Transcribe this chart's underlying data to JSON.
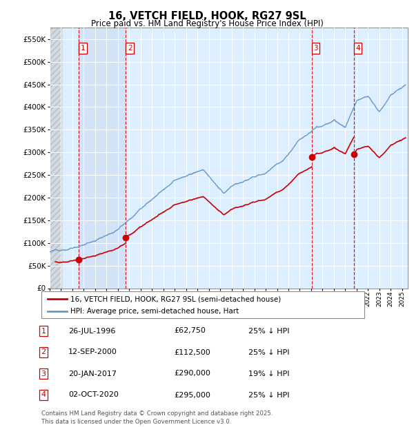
{
  "title": "16, VETCH FIELD, HOOK, RG27 9SL",
  "subtitle": "Price paid vs. HM Land Registry's House Price Index (HPI)",
  "ylabel_ticks": [
    "£0",
    "£50K",
    "£100K",
    "£150K",
    "£200K",
    "£250K",
    "£300K",
    "£350K",
    "£400K",
    "£450K",
    "£500K",
    "£550K"
  ],
  "ytick_values": [
    0,
    50000,
    100000,
    150000,
    200000,
    250000,
    300000,
    350000,
    400000,
    450000,
    500000,
    550000
  ],
  "ylim": [
    0,
    575000
  ],
  "xlim_start": 1994.0,
  "xlim_end": 2025.5,
  "background_color": "#ffffff",
  "plot_bg_color": "#ddeeff",
  "sale_points": [
    {
      "year": 1996.57,
      "price": 62750,
      "label": "1"
    },
    {
      "year": 2000.7,
      "price": 112500,
      "label": "2"
    },
    {
      "year": 2017.05,
      "price": 290000,
      "label": "3"
    },
    {
      "year": 2020.75,
      "price": 295000,
      "label": "4"
    }
  ],
  "vline_years": [
    1996.57,
    2000.7,
    2017.05,
    2020.75
  ],
  "red_line_color": "#cc0000",
  "blue_line_color": "#6699cc",
  "legend_entries": [
    "16, VETCH FIELD, HOOK, RG27 9SL (semi-detached house)",
    "HPI: Average price, semi-detached house, Hart"
  ],
  "table_data": [
    {
      "num": "1",
      "date": "26-JUL-1996",
      "price": "£62,750",
      "hpi": "25% ↓ HPI"
    },
    {
      "num": "2",
      "date": "12-SEP-2000",
      "price": "£112,500",
      "hpi": "25% ↓ HPI"
    },
    {
      "num": "3",
      "date": "20-JAN-2017",
      "price": "£290,000",
      "hpi": "19% ↓ HPI"
    },
    {
      "num": "4",
      "date": "02-OCT-2020",
      "price": "£295,000",
      "hpi": "25% ↓ HPI"
    }
  ],
  "footer": "Contains HM Land Registry data © Crown copyright and database right 2025.\nThis data is licensed under the Open Government Licence v3.0."
}
